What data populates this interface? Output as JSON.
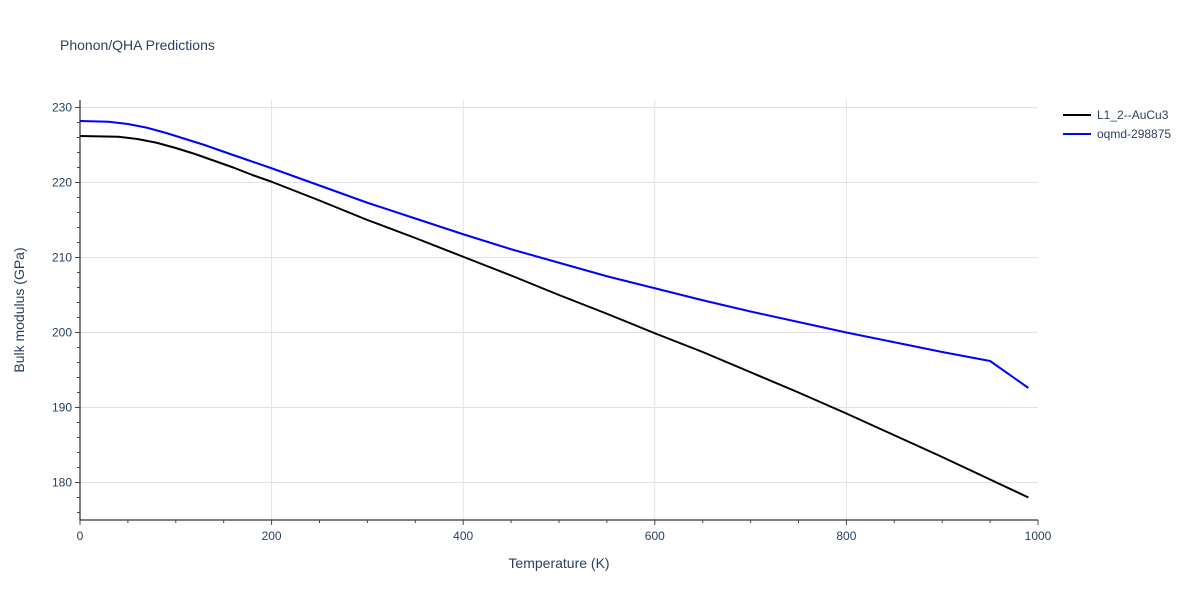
{
  "chart_data": {
    "type": "line",
    "title": "Phonon/QHA Predictions",
    "xlabel": "Temperature (K)",
    "ylabel": "Bulk modulus (GPa)",
    "xlim": [
      0,
      1000
    ],
    "ylim": [
      175,
      231
    ],
    "x_ticks": [
      0,
      200,
      400,
      600,
      800,
      1000
    ],
    "y_ticks": [
      180,
      190,
      200,
      210,
      220,
      230
    ],
    "grid": true,
    "legend_position": "top-right",
    "series": [
      {
        "name": "L1_2--AuCu3",
        "color": "#000000",
        "x": [
          0,
          20,
          40,
          60,
          80,
          100,
          120,
          140,
          160,
          180,
          200,
          250,
          300,
          350,
          400,
          450,
          500,
          550,
          600,
          650,
          700,
          750,
          800,
          850,
          900,
          950,
          990
        ],
        "y": [
          226.2,
          226.15,
          226.1,
          225.8,
          225.3,
          224.6,
          223.8,
          222.9,
          222.0,
          221.0,
          220.1,
          217.6,
          215.0,
          212.6,
          210.1,
          207.6,
          205.0,
          202.5,
          199.9,
          197.4,
          194.7,
          192.0,
          189.2,
          186.3,
          183.4,
          180.4,
          178.0
        ]
      },
      {
        "name": "oqmd-298875",
        "color": "#0000ff",
        "x": [
          0,
          30,
          50,
          70,
          90,
          110,
          130,
          150,
          175,
          200,
          250,
          300,
          350,
          400,
          450,
          500,
          550,
          600,
          650,
          700,
          750,
          800,
          850,
          900,
          950,
          990
        ],
        "y": [
          228.2,
          228.1,
          227.8,
          227.3,
          226.6,
          225.8,
          225.0,
          224.1,
          223.0,
          221.9,
          219.6,
          217.3,
          215.2,
          213.1,
          211.1,
          209.3,
          207.5,
          205.9,
          204.3,
          202.8,
          201.4,
          200.0,
          198.7,
          197.4,
          196.2,
          192.6
        ]
      }
    ]
  }
}
